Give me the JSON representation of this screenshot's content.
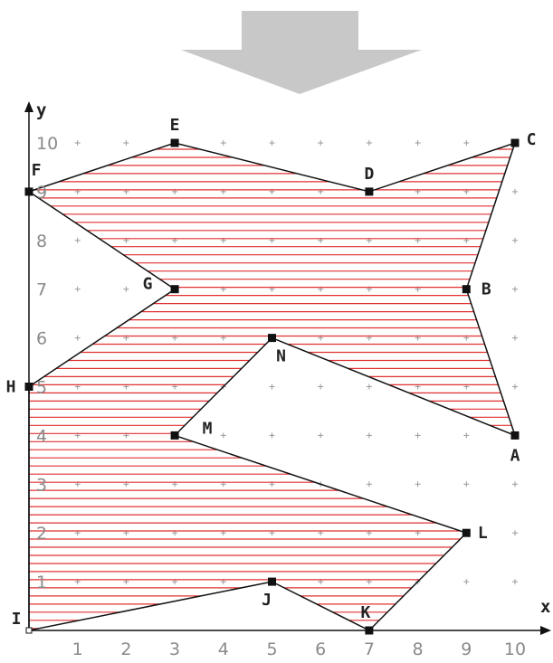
{
  "diagram": {
    "x_axis_label": "x",
    "y_axis_label": "y",
    "x_ticks": [
      1,
      2,
      3,
      4,
      5,
      6,
      7,
      8,
      9,
      10
    ],
    "y_ticks": [
      1,
      2,
      3,
      4,
      5,
      6,
      7,
      8,
      9,
      10
    ],
    "x_range": [
      0,
      10
    ],
    "y_range": [
      0,
      10
    ],
    "grid": "plus-markers",
    "hatch_color": "#e03030",
    "outline_color": "#111111",
    "arrow_color": "#c8c8c8",
    "points": [
      {
        "label": "A",
        "x": 10,
        "y": 4
      },
      {
        "label": "B",
        "x": 9,
        "y": 7
      },
      {
        "label": "C",
        "x": 10,
        "y": 10
      },
      {
        "label": "D",
        "x": 7,
        "y": 9
      },
      {
        "label": "E",
        "x": 3,
        "y": 10
      },
      {
        "label": "F",
        "x": 0,
        "y": 9
      },
      {
        "label": "G",
        "x": 3,
        "y": 7
      },
      {
        "label": "H",
        "x": 0,
        "y": 5
      },
      {
        "label": "I",
        "x": 0,
        "y": 0
      },
      {
        "label": "J",
        "x": 5,
        "y": 1
      },
      {
        "label": "K",
        "x": 7,
        "y": 0
      },
      {
        "label": "L",
        "x": 9,
        "y": 2
      },
      {
        "label": "M",
        "x": 3,
        "y": 4
      },
      {
        "label": "N",
        "x": 5,
        "y": 6
      }
    ]
  }
}
